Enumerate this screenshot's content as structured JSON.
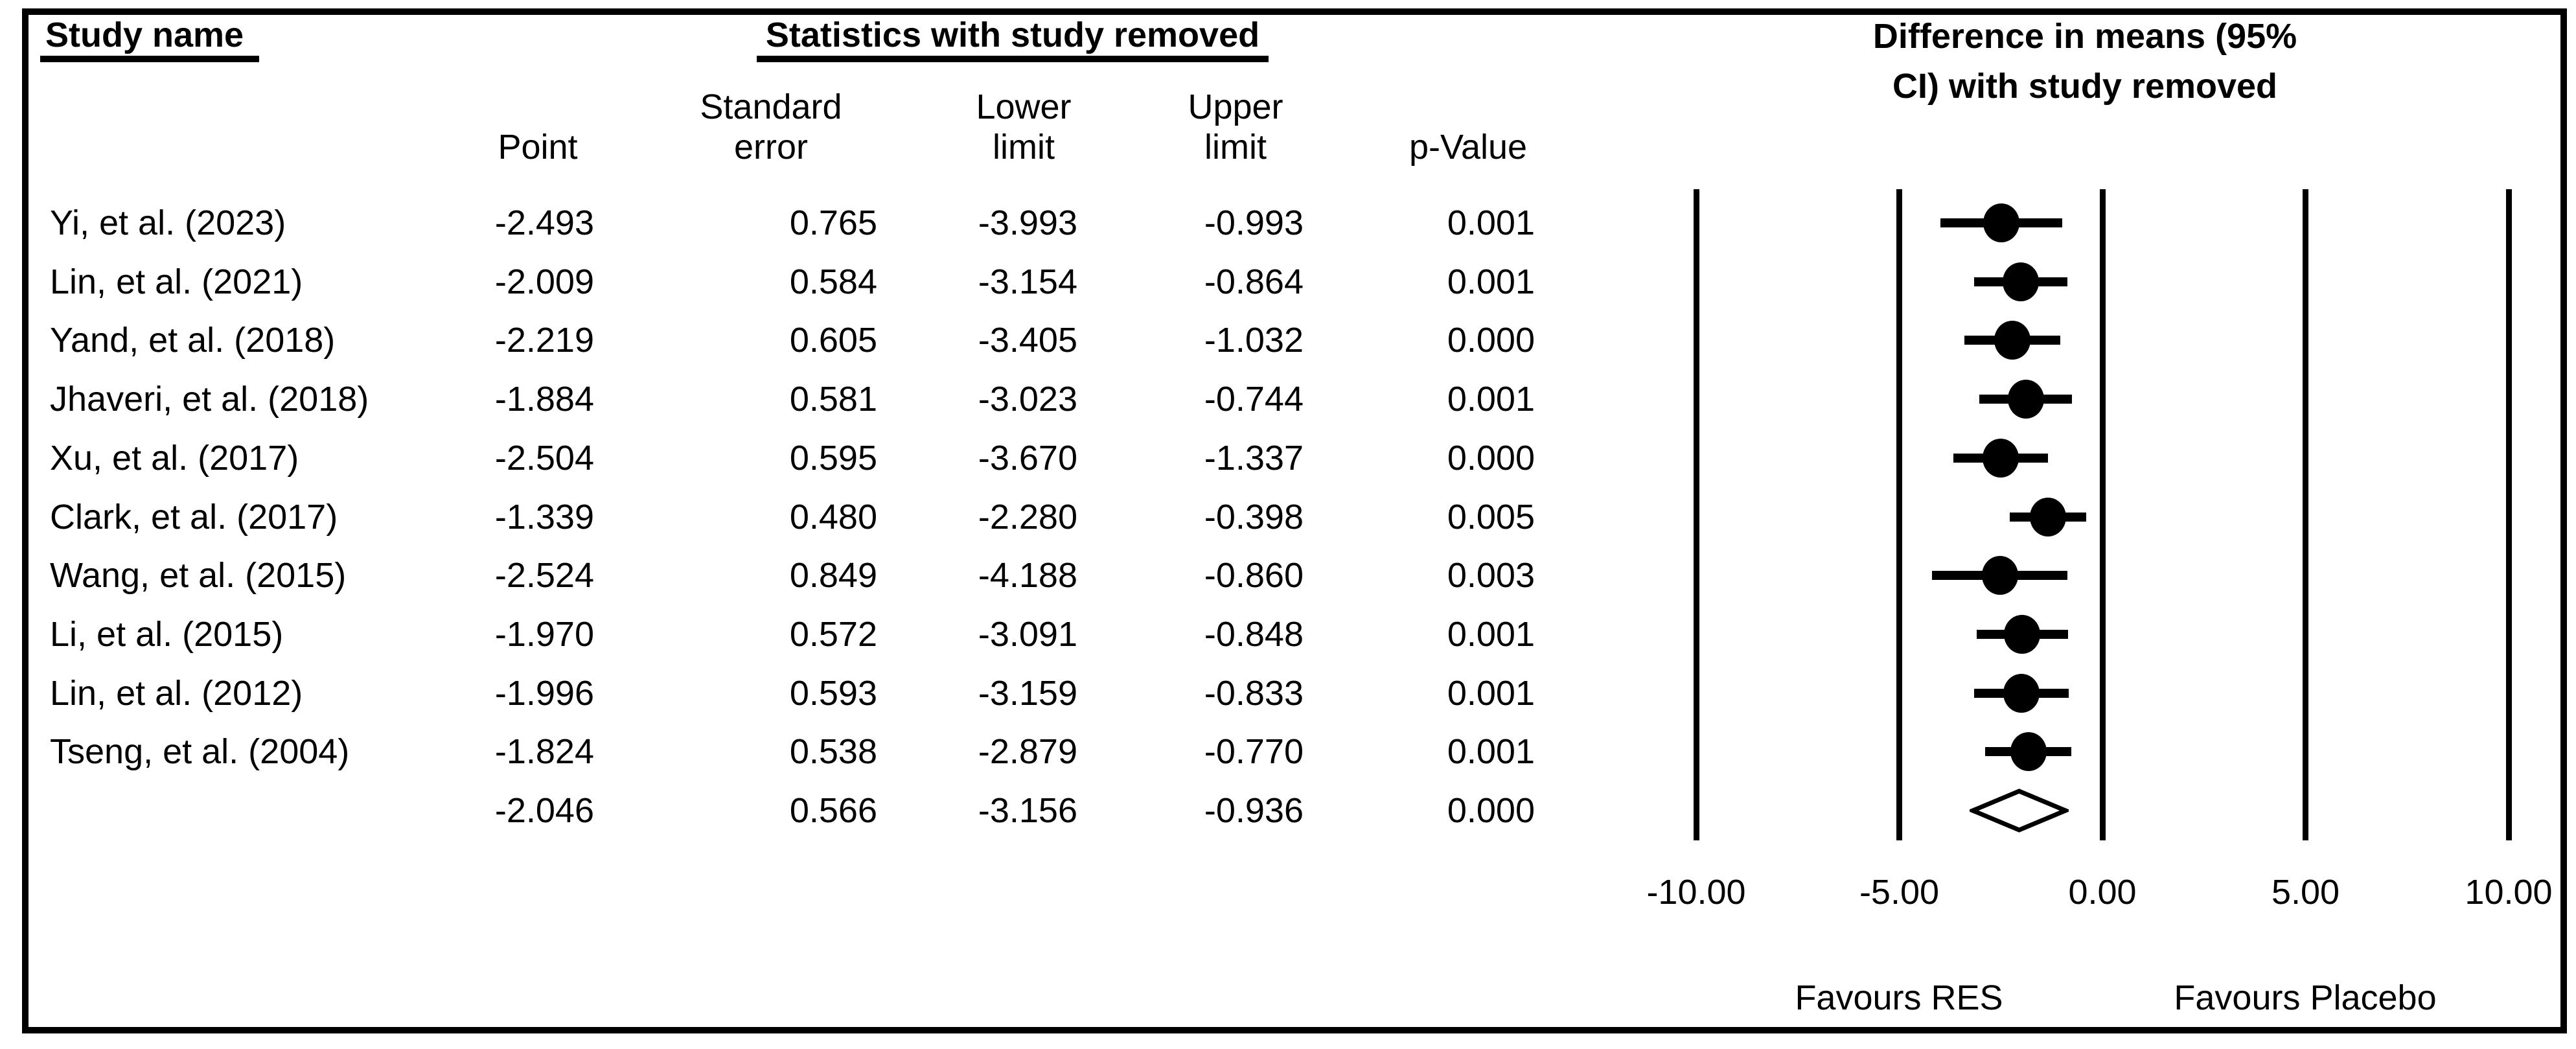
{
  "colors": {
    "ink": "#000000",
    "background": "#ffffff"
  },
  "table": {
    "col1_header": "Study name",
    "group_header": "Statistics with study removed",
    "subheaders": {
      "point": "Point",
      "se_line1": "Standard",
      "se_line2": "error",
      "lower_line1": "Lower",
      "lower_line2": "limit",
      "upper_line1": "Upper",
      "upper_line2": "limit",
      "p": "p-Value"
    },
    "rows": [
      {
        "name": "Yi, et al. (2023)",
        "point": "-2.493",
        "se": "0.765",
        "lower": "-3.993",
        "upper": "-0.993",
        "p": "0.001"
      },
      {
        "name": "Lin, et al. (2021)",
        "point": "-2.009",
        "se": "0.584",
        "lower": "-3.154",
        "upper": "-0.864",
        "p": "0.001"
      },
      {
        "name": "Yand, et al. (2018)",
        "point": "-2.219",
        "se": "0.605",
        "lower": "-3.405",
        "upper": "-1.032",
        "p": "0.000"
      },
      {
        "name": "Jhaveri, et al. (2018)",
        "point": "-1.884",
        "se": "0.581",
        "lower": "-3.023",
        "upper": "-0.744",
        "p": "0.001"
      },
      {
        "name": "Xu, et al. (2017)",
        "point": "-2.504",
        "se": "0.595",
        "lower": "-3.670",
        "upper": "-1.337",
        "p": "0.000"
      },
      {
        "name": "Clark, et al. (2017)",
        "point": "-1.339",
        "se": "0.480",
        "lower": "-2.280",
        "upper": "-0.398",
        "p": "0.005"
      },
      {
        "name": "Wang, et al. (2015)",
        "point": "-2.524",
        "se": "0.849",
        "lower": "-4.188",
        "upper": "-0.860",
        "p": "0.003"
      },
      {
        "name": "Li, et al. (2015)",
        "point": "-1.970",
        "se": "0.572",
        "lower": "-3.091",
        "upper": "-0.848",
        "p": "0.001"
      },
      {
        "name": "Lin, et al. (2012)",
        "point": "-1.996",
        "se": "0.593",
        "lower": "-3.159",
        "upper": "-0.833",
        "p": "0.001"
      },
      {
        "name": "Tseng, et al. (2004)",
        "point": "-1.824",
        "se": "0.538",
        "lower": "-2.879",
        "upper": "-0.770",
        "p": "0.001"
      }
    ],
    "overall": {
      "name": null,
      "point": "-2.046",
      "se": "0.566",
      "lower": "-3.156",
      "upper": "-0.936",
      "p": "0.000"
    }
  },
  "plot": {
    "title_line1": "Difference in means (95%",
    "title_line2": "CI) with study removed",
    "favours_left": "Favours RES",
    "favours_right": "Favours Placebo"
  },
  "chart_data": {
    "type": "scatter",
    "subtype": "forest-plot-leave-one-out",
    "title": "Difference in means (95% CI) with study removed",
    "group_header": "Statistics with study removed",
    "xlabel": "Difference in means",
    "xlim": [
      -10,
      10
    ],
    "x_ticks": [
      -10,
      -5,
      0,
      5,
      10
    ],
    "x_tick_labels": [
      "-10.00",
      "-5.00",
      "0.00",
      "5.00",
      "10.00"
    ],
    "grid": "vertical-lines-at-ticks",
    "effect_direction_labels": {
      "left": "Favours RES",
      "right": "Favours Placebo"
    },
    "studies": [
      {
        "name": "Yi, et al. (2023)",
        "point": -2.493,
        "se": 0.765,
        "lower": -3.993,
        "upper": -0.993,
        "p": 0.001
      },
      {
        "name": "Lin, et al. (2021)",
        "point": -2.009,
        "se": 0.584,
        "lower": -3.154,
        "upper": -0.864,
        "p": 0.001
      },
      {
        "name": "Yand, et al. (2018)",
        "point": -2.219,
        "se": 0.605,
        "lower": -3.405,
        "upper": -1.032,
        "p": 0.0
      },
      {
        "name": "Jhaveri, et al. (2018)",
        "point": -1.884,
        "se": 0.581,
        "lower": -3.023,
        "upper": -0.744,
        "p": 0.001
      },
      {
        "name": "Xu, et al. (2017)",
        "point": -2.504,
        "se": 0.595,
        "lower": -3.67,
        "upper": -1.337,
        "p": 0.0
      },
      {
        "name": "Clark, et al. (2017)",
        "point": -1.339,
        "se": 0.48,
        "lower": -2.28,
        "upper": -0.398,
        "p": 0.005
      },
      {
        "name": "Wang, et al. (2015)",
        "point": -2.524,
        "se": 0.849,
        "lower": -4.188,
        "upper": -0.86,
        "p": 0.003
      },
      {
        "name": "Li, et al. (2015)",
        "point": -1.97,
        "se": 0.572,
        "lower": -3.091,
        "upper": -0.848,
        "p": 0.001
      },
      {
        "name": "Lin, et al. (2012)",
        "point": -1.996,
        "se": 0.593,
        "lower": -3.159,
        "upper": -0.833,
        "p": 0.001
      },
      {
        "name": "Tseng, et al. (2004)",
        "point": -1.824,
        "se": 0.538,
        "lower": -2.879,
        "upper": -0.77,
        "p": 0.001
      }
    ],
    "overall": {
      "point": -2.046,
      "se": 0.566,
      "lower": -3.156,
      "upper": -0.936,
      "p": 0.0,
      "marker": "open-diamond"
    }
  }
}
